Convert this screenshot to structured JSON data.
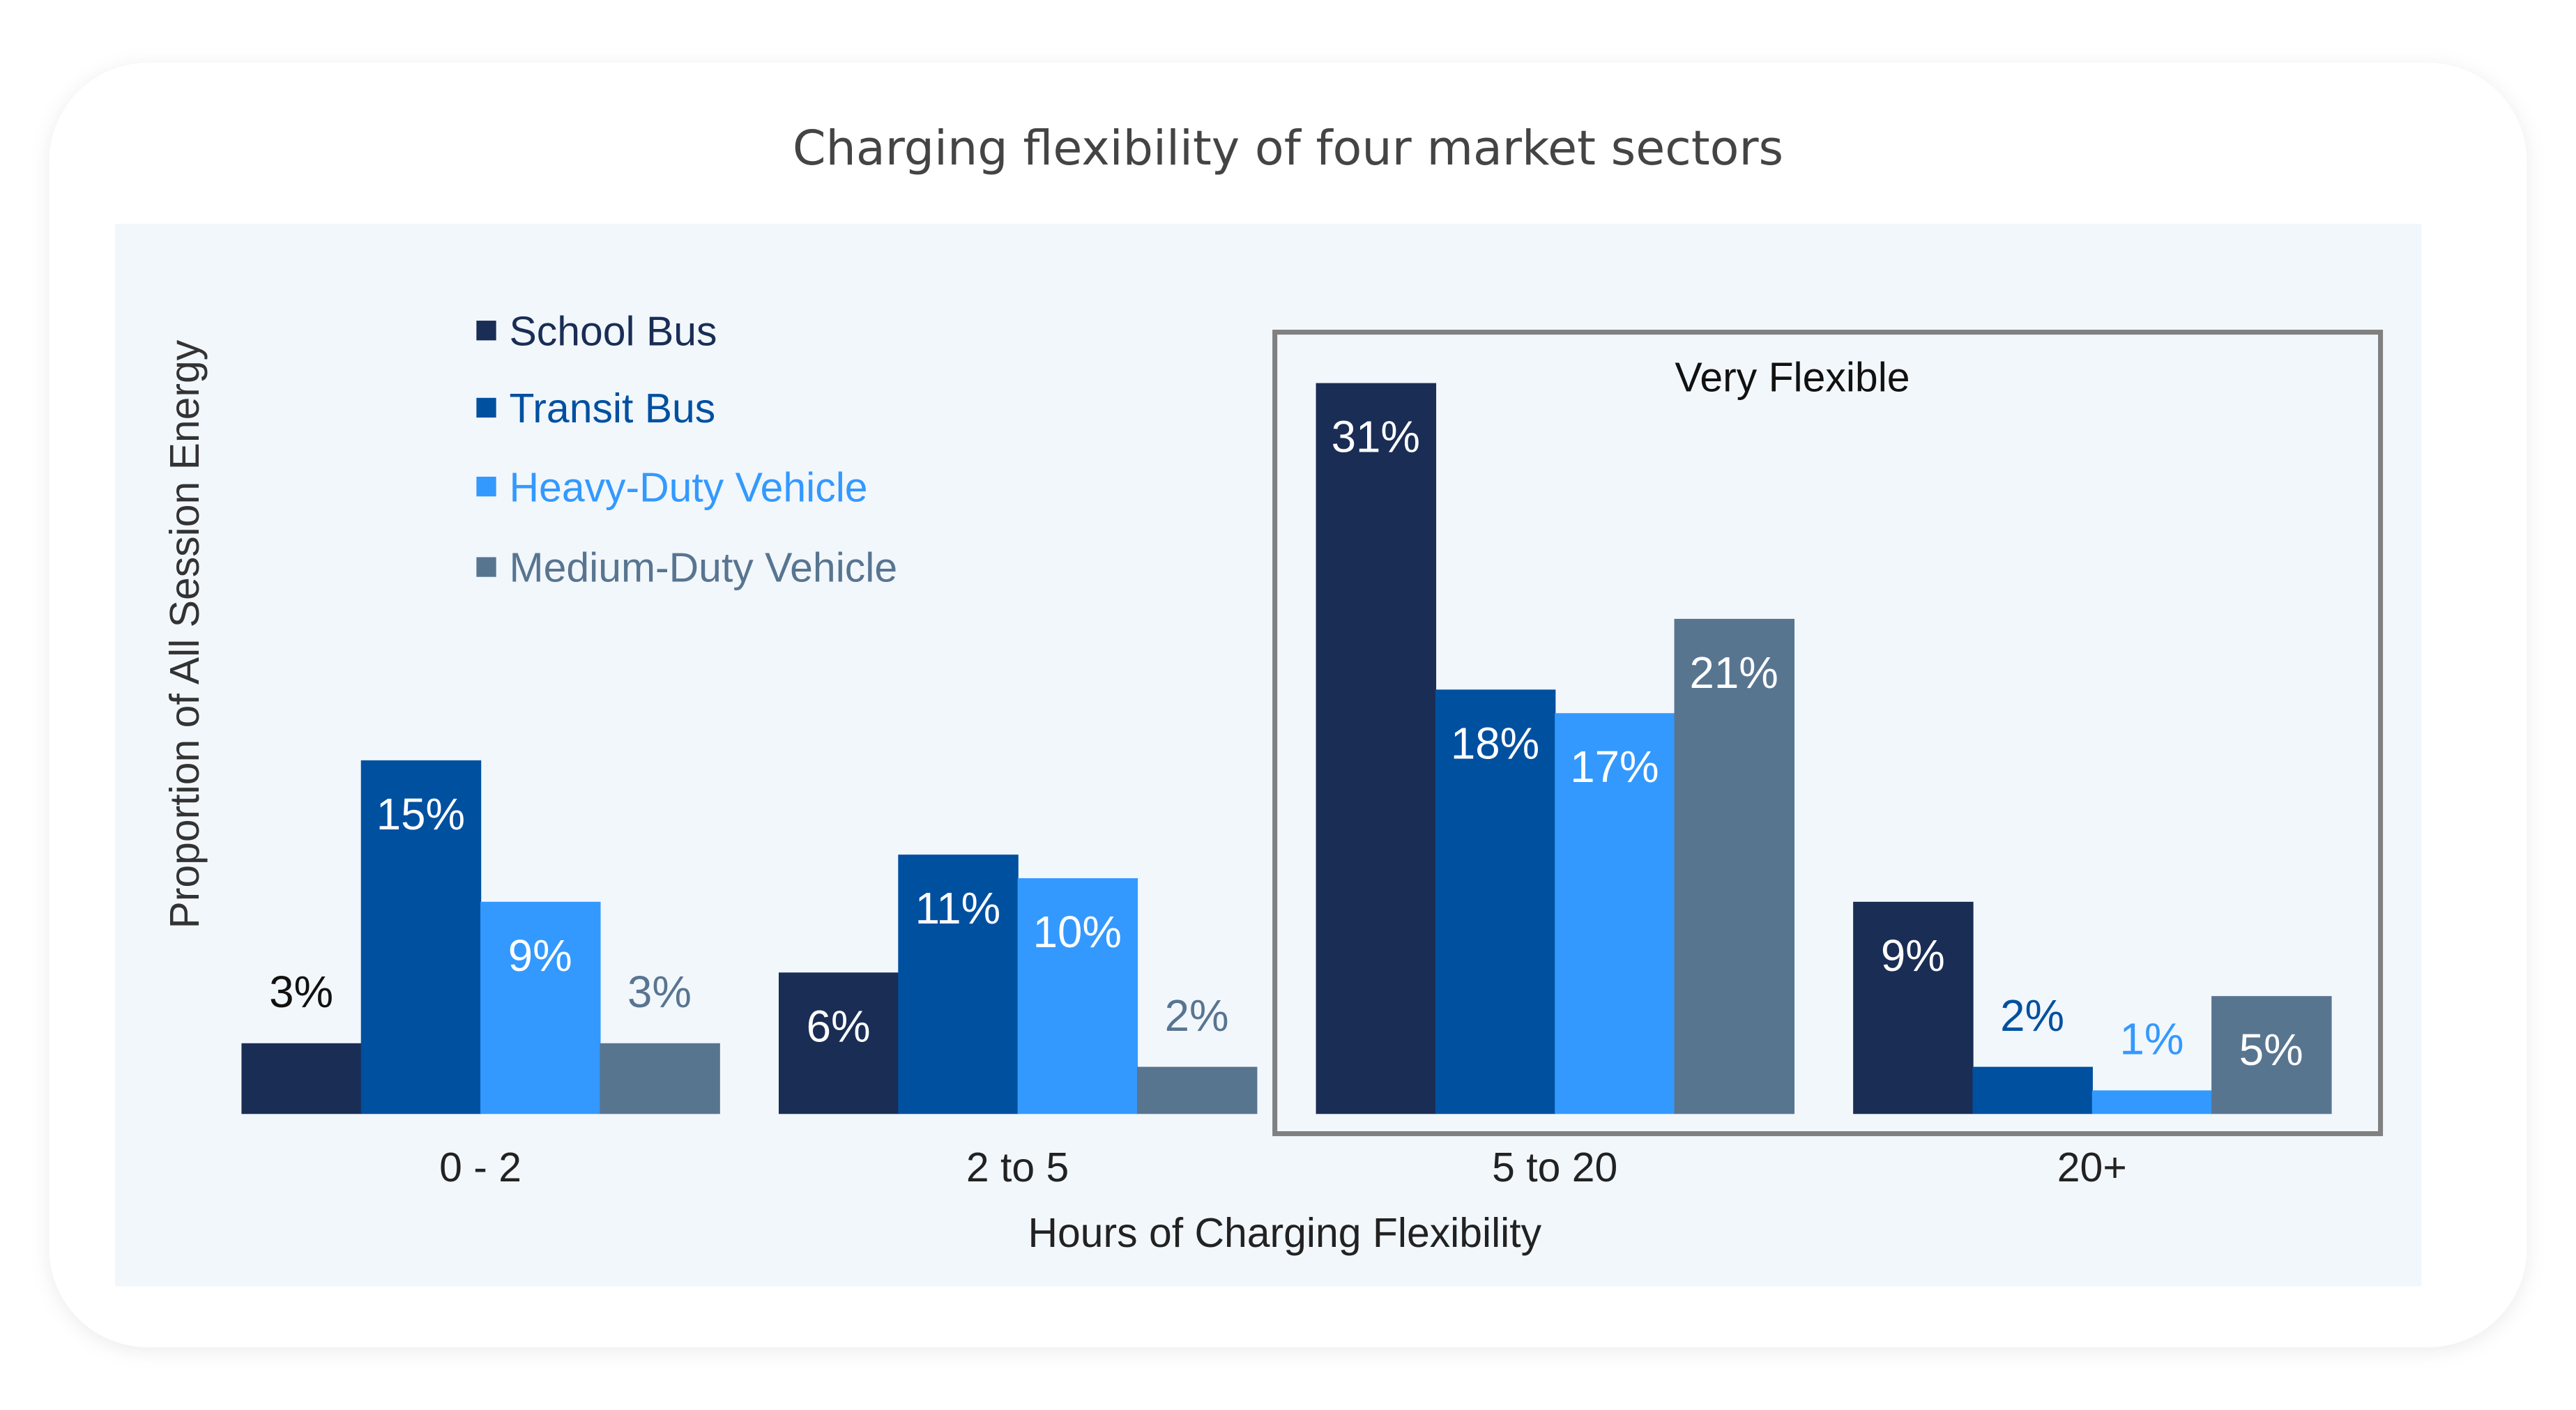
{
  "chart_data": {
    "type": "bar",
    "title": "Charging flexibility of four market sectors",
    "xlabel": "Hours of Charging Flexibility",
    "ylabel": "Proportion of All Session Energy",
    "categories": [
      "0 - 2",
      "2 to 5",
      "5 to 20",
      "20+"
    ],
    "series": [
      {
        "name": "School Bus",
        "values": [
          3,
          6,
          31,
          9
        ],
        "labels": [
          "3%",
          "6%",
          "31%",
          "9%"
        ],
        "color": "#1a2d55"
      },
      {
        "name": "Transit Bus",
        "values": [
          15,
          11,
          18,
          2
        ],
        "labels": [
          "15%",
          "11%",
          "18%",
          "2%"
        ],
        "color": "#0050a0"
      },
      {
        "name": "Heavy-Duty Vehicle",
        "values": [
          9,
          10,
          17,
          1
        ],
        "labels": [
          "9%",
          "10%",
          "17%",
          "1%"
        ],
        "color": "#3399ff"
      },
      {
        "name": "Medium-Duty Vehicle",
        "values": [
          3,
          2,
          21,
          5
        ],
        "labels": [
          "3%",
          "2%",
          "21%",
          "5%"
        ],
        "color": "#587590"
      }
    ],
    "unit": "%",
    "ylim": [
      0,
      31
    ],
    "grid": false,
    "legend_placement": "top-left",
    "annotation": {
      "label": "Very Flexible",
      "categories": [
        "5 to 20",
        "20+"
      ]
    }
  }
}
